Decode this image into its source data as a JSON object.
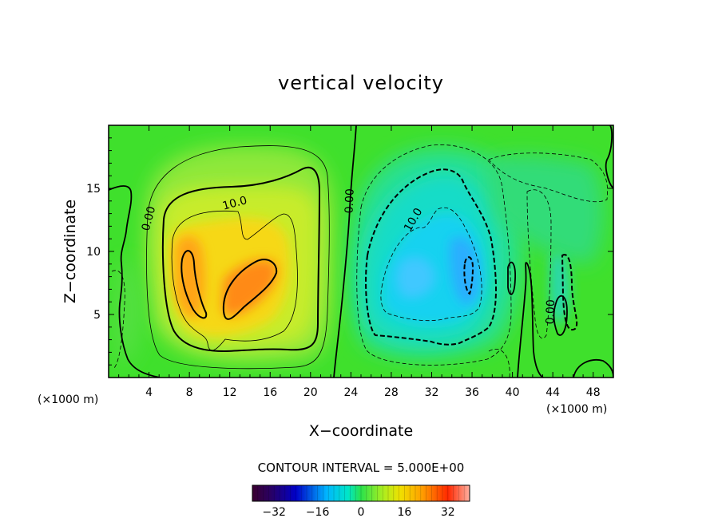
{
  "chart_data": {
    "type": "heatmap",
    "title": "vertical velocity",
    "xlabel": "X−coordinate",
    "ylabel": "Z−coordinate",
    "x_unit": "(×1000 m)",
    "y_unit": "(×1000 m)",
    "xlim": [
      0,
      50
    ],
    "ylim": [
      0,
      20
    ],
    "x_ticks": [
      4,
      8,
      12,
      16,
      20,
      24,
      28,
      32,
      36,
      40,
      44,
      48
    ],
    "x_tick_labels": [
      "4",
      "8",
      "12",
      "16",
      "20",
      "24",
      "28",
      "32",
      "36",
      "40",
      "44",
      "48"
    ],
    "y_ticks": [
      5,
      10,
      15
    ],
    "y_tick_labels": [
      "5",
      "10",
      "15"
    ],
    "contour_interval_text": "CONTOUR INTERVAL = 5.000E+00",
    "contour_interval": 5.0,
    "colorbar": {
      "range": [
        -40,
        40
      ],
      "ticks": [
        -32,
        -16,
        0,
        16,
        32
      ],
      "tick_labels": [
        "−32",
        "−16",
        "0",
        "16",
        "32"
      ]
    },
    "contour_labels": [
      {
        "text": "10.0",
        "x": 12.5,
        "z": 13.8,
        "angle": -15
      },
      {
        "text": "0.00",
        "x": 4.0,
        "z": 12.6,
        "angle": -75
      },
      {
        "text": "0.00",
        "x": 23.9,
        "z": 14.0,
        "angle": -88
      },
      {
        "text": "10.0",
        "x": 30.2,
        "z": 12.5,
        "angle": -60
      },
      {
        "text": "0.00",
        "x": 43.8,
        "z": 5.2,
        "angle": -88
      }
    ],
    "features": [
      {
        "kind": "updraft_max",
        "x": 14.5,
        "z": 7.5,
        "value": 26
      },
      {
        "kind": "updraft_max",
        "x": 9.3,
        "z": 8.5,
        "value": 22
      },
      {
        "kind": "downdraft_min",
        "x": 34.8,
        "z": 9.5,
        "value": -17
      },
      {
        "kind": "downdraft_min",
        "x": 31.0,
        "z": 9.0,
        "value": -13
      }
    ]
  }
}
